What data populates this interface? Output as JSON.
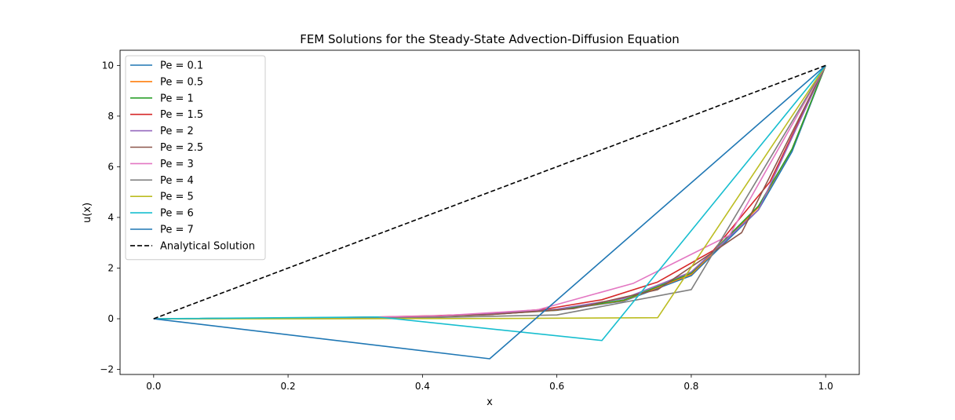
{
  "chart_data": {
    "type": "line",
    "title": "FEM Solutions for the Steady-State Advection-Diffusion Equation",
    "xlabel": "x",
    "ylabel": "u(x)",
    "xlim": [
      -0.05,
      1.05
    ],
    "ylim": [
      -2.2,
      10.6
    ],
    "xticks": [
      0.0,
      0.2,
      0.4,
      0.6,
      0.8,
      1.0
    ],
    "xtick_labels": [
      "0.0",
      "0.2",
      "0.4",
      "0.6",
      "0.8",
      "1.0"
    ],
    "yticks": [
      -2,
      0,
      2,
      4,
      6,
      8,
      10
    ],
    "ytick_labels": [
      "−2",
      "0",
      "2",
      "4",
      "6",
      "8",
      "10"
    ],
    "grid": false,
    "legend_position": "upper-left",
    "series": [
      {
        "name": "Pe = 0.1",
        "color": "#1f77b4",
        "dash": "solid",
        "x": [
          0.0,
          0.1,
          0.2,
          0.3,
          0.4,
          0.5,
          0.6,
          0.7,
          0.8,
          0.9,
          0.95,
          1.0
        ],
        "y": [
          0.0,
          0.01,
          0.02,
          0.04,
          0.09,
          0.17,
          0.33,
          0.7,
          1.7,
          4.3,
          6.6,
          10.0
        ]
      },
      {
        "name": "Pe = 0.5",
        "color": "#ff7f0e",
        "dash": "solid",
        "x": [
          0.0,
          0.1,
          0.2,
          0.3,
          0.4,
          0.5,
          0.6,
          0.7,
          0.8,
          0.9,
          0.95,
          1.0
        ],
        "y": [
          0.0,
          0.01,
          0.02,
          0.04,
          0.09,
          0.17,
          0.34,
          0.72,
          1.75,
          4.4,
          6.7,
          10.0
        ]
      },
      {
        "name": "Pe = 1",
        "color": "#2ca02c",
        "dash": "solid",
        "x": [
          0.0,
          0.1,
          0.2,
          0.3,
          0.4,
          0.5,
          0.6,
          0.7,
          0.8,
          0.9,
          0.95,
          1.0
        ],
        "y": [
          0.0,
          0.01,
          0.02,
          0.04,
          0.08,
          0.17,
          0.35,
          0.74,
          1.8,
          4.45,
          6.7,
          10.0
        ]
      },
      {
        "name": "Pe = 1.5",
        "color": "#d62728",
        "dash": "solid",
        "x": [
          0.0,
          0.083,
          0.167,
          0.25,
          0.333,
          0.417,
          0.5,
          0.583,
          0.667,
          0.75,
          0.833,
          0.917,
          1.0
        ],
        "y": [
          0.0,
          0.01,
          0.02,
          0.04,
          0.07,
          0.12,
          0.2,
          0.38,
          0.75,
          1.45,
          2.7,
          5.4,
          10.0
        ]
      },
      {
        "name": "Pe = 2",
        "color": "#9467bd",
        "dash": "solid",
        "x": [
          0.0,
          0.1,
          0.2,
          0.3,
          0.4,
          0.5,
          0.6,
          0.7,
          0.8,
          0.9,
          1.0
        ],
        "y": [
          0.0,
          0.01,
          0.02,
          0.04,
          0.09,
          0.18,
          0.38,
          0.8,
          1.85,
          4.3,
          10.0
        ]
      },
      {
        "name": "Pe = 2.5",
        "color": "#8c564b",
        "dash": "solid",
        "x": [
          0.0,
          0.125,
          0.25,
          0.375,
          0.5,
          0.625,
          0.75,
          0.875,
          1.0
        ],
        "y": [
          0.0,
          0.01,
          0.03,
          0.07,
          0.16,
          0.4,
          1.15,
          3.4,
          10.0
        ]
      },
      {
        "name": "Pe = 3",
        "color": "#e377c2",
        "dash": "solid",
        "x": [
          0.0,
          0.143,
          0.286,
          0.429,
          0.571,
          0.714,
          0.857,
          1.0
        ],
        "y": [
          0.0,
          0.01,
          0.04,
          0.12,
          0.35,
          1.4,
          3.3,
          10.0
        ]
      },
      {
        "name": "Pe = 4",
        "color": "#7f7f7f",
        "dash": "solid",
        "x": [
          0.0,
          0.2,
          0.4,
          0.6,
          0.8,
          1.0
        ],
        "y": [
          0.0,
          0.01,
          0.04,
          0.15,
          1.15,
          10.0
        ]
      },
      {
        "name": "Pe = 5",
        "color": "#bcbd22",
        "dash": "solid",
        "x": [
          0.0,
          0.25,
          0.5,
          0.75,
          1.0
        ],
        "y": [
          0.0,
          0.0,
          0.01,
          0.04,
          10.0
        ]
      },
      {
        "name": "Pe = 6",
        "color": "#17becf",
        "dash": "solid",
        "x": [
          0.0,
          0.333,
          0.667,
          1.0
        ],
        "y": [
          0.0,
          0.07,
          -0.86,
          10.0
        ]
      },
      {
        "name": "Pe = 7",
        "color": "#1f77b4",
        "dash": "solid",
        "x": [
          0.0,
          0.5,
          1.0
        ],
        "y": [
          0.0,
          -1.58,
          10.0
        ]
      },
      {
        "name": "Analytical Solution",
        "color": "#000000",
        "dash": "dashed",
        "x": [
          0.0,
          1.0
        ],
        "y": [
          0.0,
          10.0
        ]
      }
    ]
  }
}
